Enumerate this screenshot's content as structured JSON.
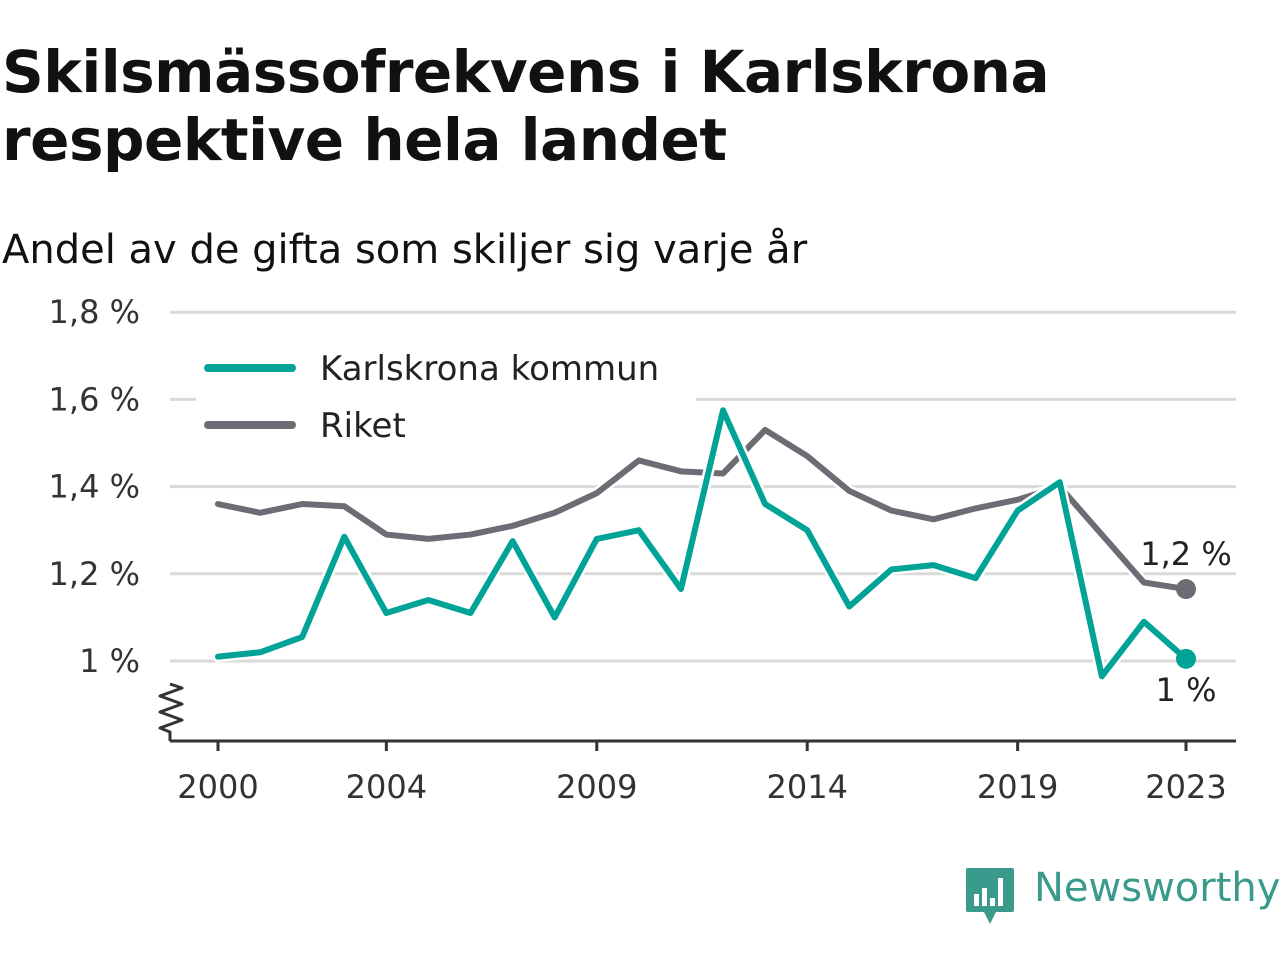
{
  "title": "Skilsmässofrekvens i Karlskrona respektive hela landet",
  "subtitle": "Andel av de gifta som skiljer sig varje år",
  "brand": "Newsworthy",
  "colors": {
    "karlskrona": "#00a396",
    "riket": "#6d6b73",
    "grid": "#d9d9d9",
    "brand": "#3a9a8b"
  },
  "chart_data": {
    "type": "line",
    "x": [
      2000,
      2001,
      2002,
      2003,
      2004,
      2005,
      2006,
      2007,
      2008,
      2009,
      2010,
      2011,
      2012,
      2013,
      2014,
      2015,
      2016,
      2017,
      2018,
      2019,
      2020,
      2021,
      2022,
      2023
    ],
    "x_ticks": [
      2000,
      2004,
      2009,
      2014,
      2019,
      2023
    ],
    "x_tick_labels": [
      "2000",
      "2004",
      "2009",
      "2014",
      "2019",
      "2023"
    ],
    "y_ticks": [
      1.0,
      1.2,
      1.4,
      1.6,
      1.8
    ],
    "y_tick_labels": [
      "1 %",
      "1,2 %",
      "1,4 %",
      "1,6 %",
      "1,8 %"
    ],
    "ylim": [
      0.85,
      1.8
    ],
    "y_axis_break": true,
    "grid": true,
    "legend_position": "top-left",
    "series": [
      {
        "name": "Karlskrona kommun",
        "color_key": "karlskrona",
        "values": [
          1.01,
          1.02,
          1.055,
          1.285,
          1.11,
          1.14,
          1.11,
          1.275,
          1.1,
          1.28,
          1.3,
          1.165,
          1.575,
          1.36,
          1.3,
          1.125,
          1.21,
          1.22,
          1.19,
          1.345,
          1.41,
          0.965,
          1.09,
          1.005
        ],
        "end_label": "1 %"
      },
      {
        "name": "Riket",
        "color_key": "riket",
        "values": [
          1.36,
          1.34,
          1.36,
          1.355,
          1.29,
          1.28,
          1.29,
          1.31,
          1.34,
          1.385,
          1.46,
          1.435,
          1.43,
          1.53,
          1.47,
          1.39,
          1.345,
          1.325,
          1.35,
          1.37,
          1.4,
          1.29,
          1.18,
          1.165
        ],
        "end_label": "1,2 %"
      }
    ]
  }
}
